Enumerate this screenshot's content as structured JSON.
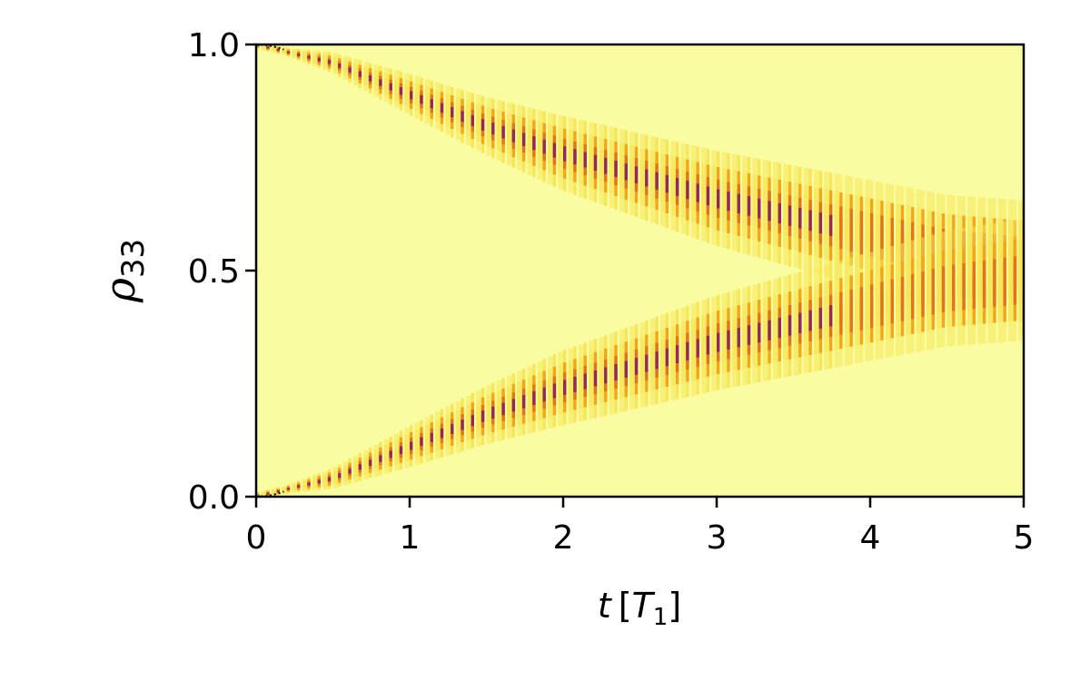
{
  "chart_data": {
    "type": "heatmap",
    "title": "",
    "xlabel": {
      "main": "t",
      "open": "[",
      "sym": "T",
      "sub": "1",
      "close": "]"
    },
    "ylabel": {
      "main": "ρ",
      "sub": "33"
    },
    "xlim": [
      0,
      5
    ],
    "ylim": [
      0,
      1
    ],
    "x_ticks": [
      0,
      1,
      2,
      3,
      4,
      5
    ],
    "x_tick_labels": [
      "0",
      "1",
      "2",
      "3",
      "4",
      "5"
    ],
    "y_ticks": [
      0.0,
      0.5,
      1.0
    ],
    "y_tick_labels": [
      "0.0",
      "0.5",
      "1.0"
    ],
    "grid": false,
    "colormap": {
      "background": "#f9fca0",
      "low": "#f6e65a",
      "mid": "#f3a61a",
      "high": "#e4741b",
      "peak": "#8e2a5e"
    },
    "branches": [
      {
        "name": "",
        "center": [
          [
            0,
            1.0
          ],
          [
            0.5,
            0.96
          ],
          [
            1,
            0.89
          ],
          [
            1.5,
            0.82
          ],
          [
            2,
            0.76
          ],
          [
            2.5,
            0.71
          ],
          [
            3,
            0.66
          ],
          [
            3.5,
            0.62
          ],
          [
            4,
            0.58
          ],
          [
            4.5,
            0.54
          ],
          [
            5,
            0.52
          ]
        ],
        "width": [
          [
            0,
            0.0
          ],
          [
            0.5,
            0.015
          ],
          [
            1,
            0.03
          ],
          [
            2,
            0.055
          ],
          [
            3,
            0.07
          ],
          [
            4,
            0.08
          ],
          [
            5,
            0.09
          ]
        ]
      },
      {
        "name": "",
        "center": [
          [
            0,
            0.0
          ],
          [
            0.5,
            0.04
          ],
          [
            1,
            0.11
          ],
          [
            1.5,
            0.18
          ],
          [
            2,
            0.24
          ],
          [
            2.5,
            0.29
          ],
          [
            3,
            0.34
          ],
          [
            3.5,
            0.38
          ],
          [
            4,
            0.42
          ],
          [
            4.5,
            0.46
          ],
          [
            5,
            0.48
          ]
        ],
        "width": [
          [
            0,
            0.0
          ],
          [
            0.5,
            0.015
          ],
          [
            1,
            0.03
          ],
          [
            2,
            0.055
          ],
          [
            3,
            0.07
          ],
          [
            4,
            0.08
          ],
          [
            5,
            0.09
          ]
        ]
      }
    ]
  }
}
